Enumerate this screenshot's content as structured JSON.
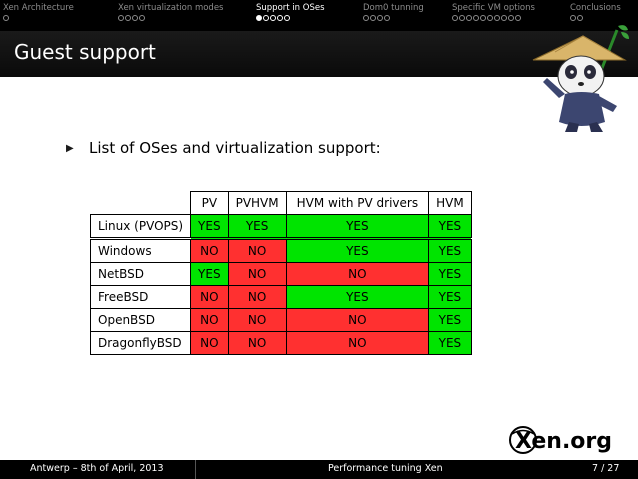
{
  "nav": {
    "sections": [
      {
        "label": "Xen Architecture",
        "dots": 1,
        "filled": 0
      },
      {
        "label": "Xen virtualization modes",
        "dots": 4,
        "filled": 0
      },
      {
        "label": "Support in OSes",
        "dots": 5,
        "filled": 1
      },
      {
        "label": "Dom0 tunning",
        "dots": 4,
        "filled": 0
      },
      {
        "label": "Specific VM options",
        "dots": 10,
        "filled": 0
      },
      {
        "label": "Conclusions",
        "dots": 2,
        "filled": 0
      }
    ],
    "active_index": 2
  },
  "slide": {
    "title": "Guest support",
    "bullet": "List of OSes and virtualization support:"
  },
  "table": {
    "columns": [
      "PV",
      "PVHVM",
      "HVM with PV drivers",
      "HVM"
    ],
    "rows": [
      {
        "os": "Linux (PVOPS)",
        "values": [
          "YES",
          "YES",
          "YES",
          "YES"
        ]
      },
      {
        "os": "Windows",
        "values": [
          "NO",
          "NO",
          "YES",
          "YES"
        ]
      },
      {
        "os": "NetBSD",
        "values": [
          "YES",
          "NO",
          "NO",
          "YES"
        ]
      },
      {
        "os": "FreeBSD",
        "values": [
          "NO",
          "NO",
          "YES",
          "YES"
        ]
      },
      {
        "os": "OpenBSD",
        "values": [
          "NO",
          "NO",
          "NO",
          "YES"
        ]
      },
      {
        "os": "DragonflyBSD",
        "values": [
          "NO",
          "NO",
          "NO",
          "YES"
        ]
      }
    ]
  },
  "colors": {
    "yes": "#00e400",
    "no": "#ff3030",
    "bar": "#000000"
  },
  "logo": {
    "text": "Xen.org"
  },
  "footer": {
    "left": "Antwerp – 8th of April, 2013",
    "center": "Performance tuning Xen",
    "right": "7 / 27"
  }
}
